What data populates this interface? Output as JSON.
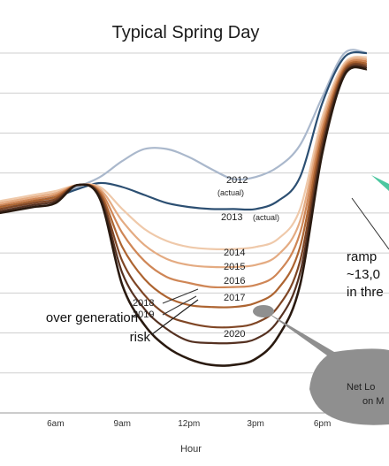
{
  "chart_data": {
    "type": "line",
    "title": "Typical Spring Day",
    "xlabel": "Hour",
    "ylabel": "",
    "x": [
      3,
      4,
      5,
      6,
      7,
      8,
      9,
      10,
      11,
      12,
      13,
      14,
      15,
      16,
      17,
      18,
      19,
      20
    ],
    "xticks": [
      {
        "x": 6,
        "label": "6am"
      },
      {
        "x": 9,
        "label": "9am"
      },
      {
        "x": 12,
        "label": "12pm"
      },
      {
        "x": 15,
        "label": "3pm"
      },
      {
        "x": 18,
        "label": "6pm"
      }
    ],
    "xlim": [
      3.5,
      21
    ],
    "ylim": [
      10000,
      28000
    ],
    "grid": true,
    "series": [
      {
        "name": "2012",
        "sub": "(actual)",
        "color": "#aab8cc",
        "values": [
          20200,
          20300,
          20500,
          20800,
          21300,
          21800,
          22600,
          23200,
          23200,
          22800,
          22200,
          21700,
          21800,
          22300,
          23400,
          25800,
          28000,
          28000
        ]
      },
      {
        "name": "2013",
        "sub": "(actual)",
        "color": "#2c4f72",
        "values": [
          20300,
          20400,
          20600,
          20800,
          21200,
          21500,
          21300,
          20900,
          20500,
          20300,
          20200,
          20200,
          20200,
          20600,
          21800,
          25500,
          27800,
          28000
        ]
      },
      {
        "name": "2014",
        "color": "#efc9aa",
        "values": [
          20500,
          20700,
          20900,
          21100,
          21400,
          21300,
          20200,
          19200,
          18600,
          18300,
          18200,
          18200,
          18300,
          18700,
          20200,
          24800,
          27500,
          27800
        ]
      },
      {
        "name": "2015",
        "color": "#e4ab82",
        "values": [
          20400,
          20600,
          20800,
          21000,
          21400,
          21200,
          19600,
          18400,
          17700,
          17400,
          17300,
          17300,
          17400,
          17900,
          19600,
          24500,
          27400,
          27700
        ]
      },
      {
        "name": "2016",
        "color": "#cf8656",
        "values": [
          20300,
          20500,
          20700,
          20900,
          21400,
          21100,
          19000,
          17600,
          16800,
          16500,
          16300,
          16300,
          16400,
          17000,
          19000,
          24200,
          27300,
          27600
        ]
      },
      {
        "name": "2017",
        "color": "#ad6431",
        "values": [
          20200,
          20400,
          20600,
          20800,
          21400,
          21000,
          18300,
          16700,
          15800,
          15400,
          15300,
          15300,
          15500,
          16200,
          18300,
          23900,
          27200,
          27500
        ]
      },
      {
        "name": "2018",
        "color": "#7f4625",
        "values": [
          20100,
          20300,
          20500,
          20700,
          21400,
          20900,
          17600,
          15900,
          14900,
          14500,
          14300,
          14300,
          14500,
          15300,
          17600,
          23600,
          27100,
          27400
        ]
      },
      {
        "name": "2019",
        "color": "#553121",
        "values": [
          20000,
          20200,
          20400,
          20600,
          21400,
          20800,
          17000,
          15200,
          14200,
          13600,
          13500,
          13500,
          13700,
          14600,
          17000,
          23300,
          27000,
          27300
        ]
      },
      {
        "name": "2020",
        "color": "#2a1a10",
        "values": [
          19900,
          20100,
          20300,
          20500,
          21400,
          20700,
          16400,
          14400,
          13300,
          12700,
          12400,
          12400,
          12700,
          13800,
          16400,
          23000,
          26900,
          27200
        ]
      }
    ],
    "annotations": {
      "over_generation": [
        "over generation",
        "risk"
      ],
      "ramp": [
        "ramp",
        "~13,0",
        "in thre"
      ],
      "callout": [
        "Net Lo",
        "on M"
      ]
    }
  }
}
